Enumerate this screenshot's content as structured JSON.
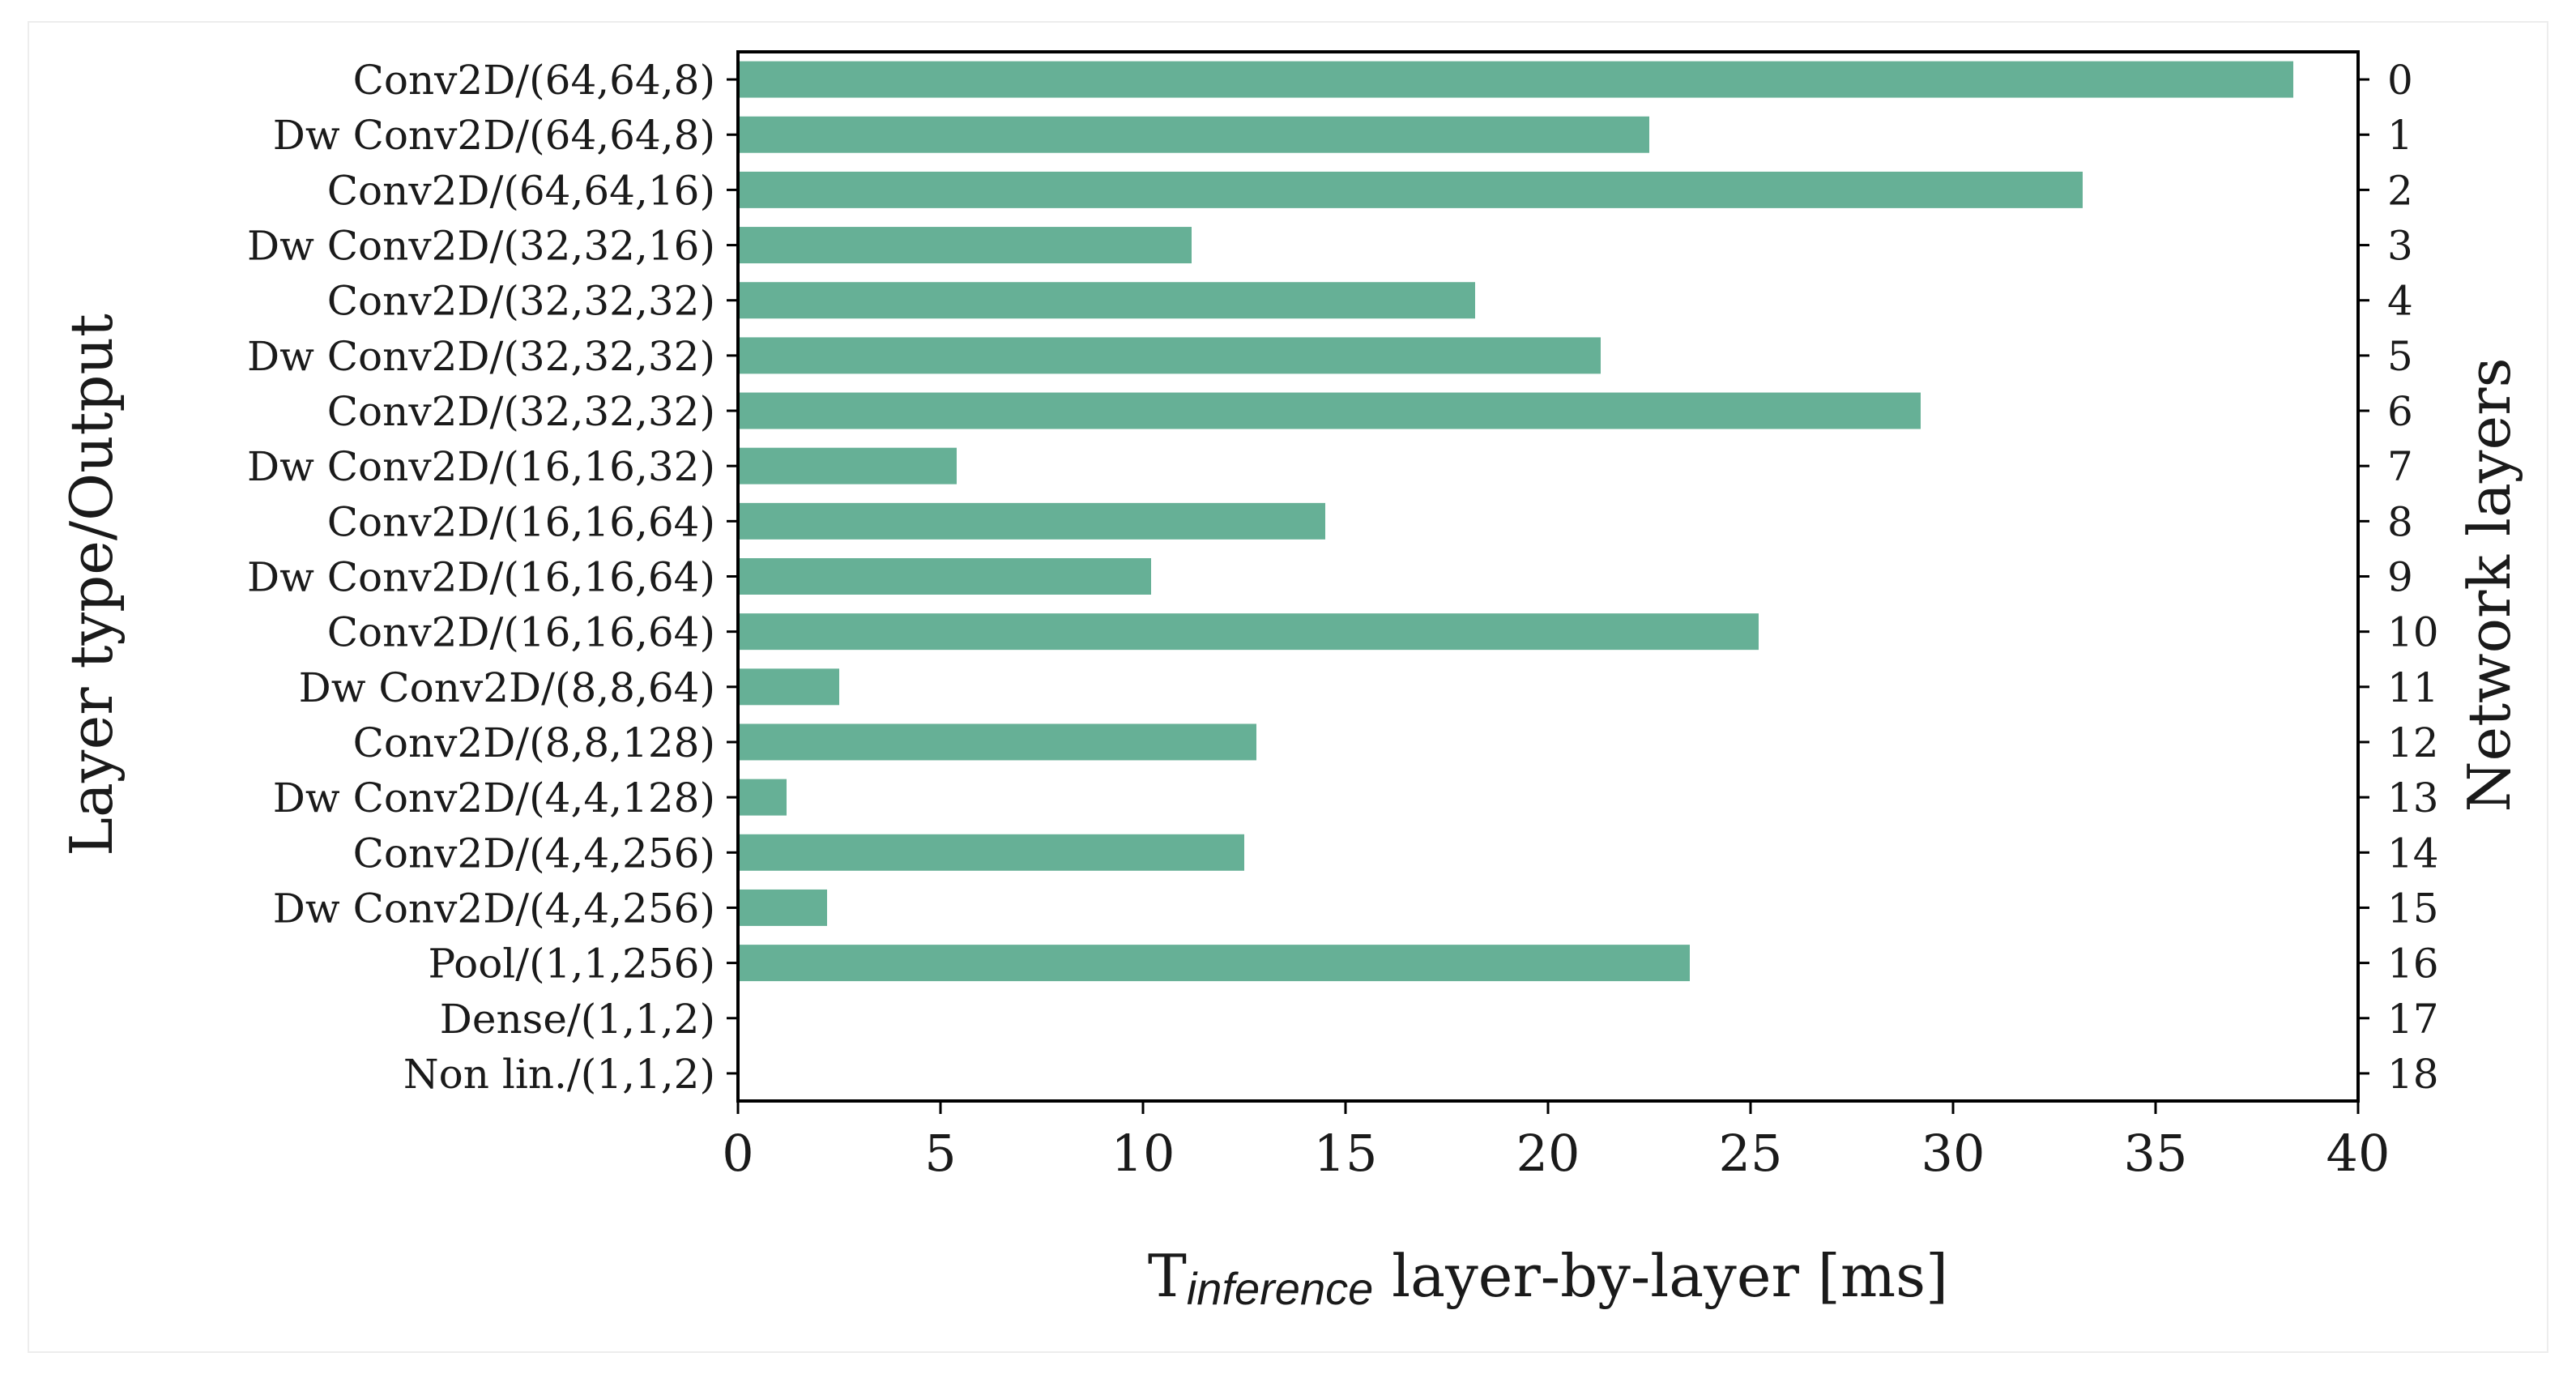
{
  "chart_data": {
    "type": "bar",
    "orientation": "horizontal",
    "categories": [
      "Conv2D/(64,64,8)",
      "Dw Conv2D/(64,64,8)",
      "Conv2D/(64,64,16)",
      "Dw Conv2D/(32,32,16)",
      "Conv2D/(32,32,32)",
      "Dw Conv2D/(32,32,32)",
      "Conv2D/(32,32,32)",
      "Dw Conv2D/(16,16,32)",
      "Conv2D/(16,16,64)",
      "Dw Conv2D/(16,16,64)",
      "Conv2D/(16,16,64)",
      "Dw Conv2D/(8,8,64)",
      "Conv2D/(8,8,128)",
      "Dw Conv2D/(4,4,128)",
      "Conv2D/(4,4,256)",
      "Dw Conv2D/(4,4,256)",
      "Pool/(1,1,256)",
      "Dense/(1,1,2)",
      "Non lin./(1,1,2)"
    ],
    "layer_indices": [
      "0",
      "1",
      "2",
      "3",
      "4",
      "5",
      "6",
      "7",
      "8",
      "9",
      "10",
      "11",
      "12",
      "13",
      "14",
      "15",
      "16",
      "17",
      "18"
    ],
    "values": [
      38.4,
      22.5,
      33.2,
      11.2,
      18.2,
      21.3,
      29.2,
      5.4,
      14.5,
      10.2,
      25.2,
      2.5,
      12.8,
      1.2,
      12.5,
      2.2,
      23.5,
      0,
      0
    ],
    "xlabel_main": "T",
    "xlabel_sub": "inference",
    "xlabel_rest": " layer-by-layer [ms]",
    "ylabel": "Layer type/Output",
    "ylabel_right": "Network layers",
    "xlim": [
      0,
      40
    ],
    "xticks": [
      "0",
      "5",
      "10",
      "15",
      "20",
      "25",
      "30",
      "35",
      "40"
    ],
    "grid": false,
    "colors": {
      "bar": "#66b096",
      "axis": "#000000",
      "frame": "#ededed"
    }
  }
}
